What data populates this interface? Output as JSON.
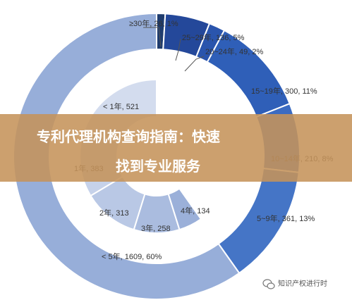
{
  "chart_data": {
    "type": "pie",
    "title": "",
    "outer_ring": {
      "series": [
        {
          "label": "≥30年, 26, 1%",
          "category": "≥30年",
          "value": 26,
          "percent": "1%",
          "color": "#1f3c6e"
        },
        {
          "label": "25~29年, 136, 5%",
          "category": "25~29年",
          "value": 136,
          "percent": "5%",
          "color": "#24489a"
        },
        {
          "label": "20~24年, 49, 2%",
          "category": "20~24年",
          "value": 49,
          "percent": "2%",
          "color": "#2a55ad"
        },
        {
          "label": "15~19年, 300, 11%",
          "category": "15~19年",
          "value": 300,
          "percent": "11%",
          "color": "#2f5fb8"
        },
        {
          "label": "10~14年, 210, 8%",
          "category": "10~14年",
          "value": 210,
          "percent": "8%",
          "color": "#3b6bc2"
        },
        {
          "label": "5~9年, 361, 13%",
          "category": "5~9年",
          "value": 361,
          "percent": "13%",
          "color": "#4575c6"
        },
        {
          "label": "< 5年, 1609, 60%",
          "category": "< 5年",
          "value": 1609,
          "percent": "60%",
          "color": "#97aed9"
        }
      ]
    },
    "inner_ring": {
      "series": [
        {
          "label": "< 1年, 521",
          "category": "< 1年",
          "value": 521,
          "color": "#d3dcee"
        },
        {
          "label": "1年, 383",
          "category": "1年",
          "value": 383,
          "color": "#c6d2ea"
        },
        {
          "label": "2年, 313",
          "category": "2年",
          "value": 313,
          "color": "#b9c8e5"
        },
        {
          "label": "3年, 258",
          "category": "3年",
          "value": 258,
          "color": "#aabcdf"
        },
        {
          "label": "4年, 134",
          "category": "4年",
          "value": 134,
          "color": "#9bb0d9"
        }
      ]
    },
    "legend": "none",
    "label_color": "#333333",
    "divider_color": "#ffffff"
  },
  "banner": {
    "line1": "专利代理机构查询指南：快速",
    "line2": "找到专业服务",
    "color": "#c5935a"
  },
  "watermark": {
    "text": "知识产权进行时",
    "icon": "wechat-icon"
  }
}
